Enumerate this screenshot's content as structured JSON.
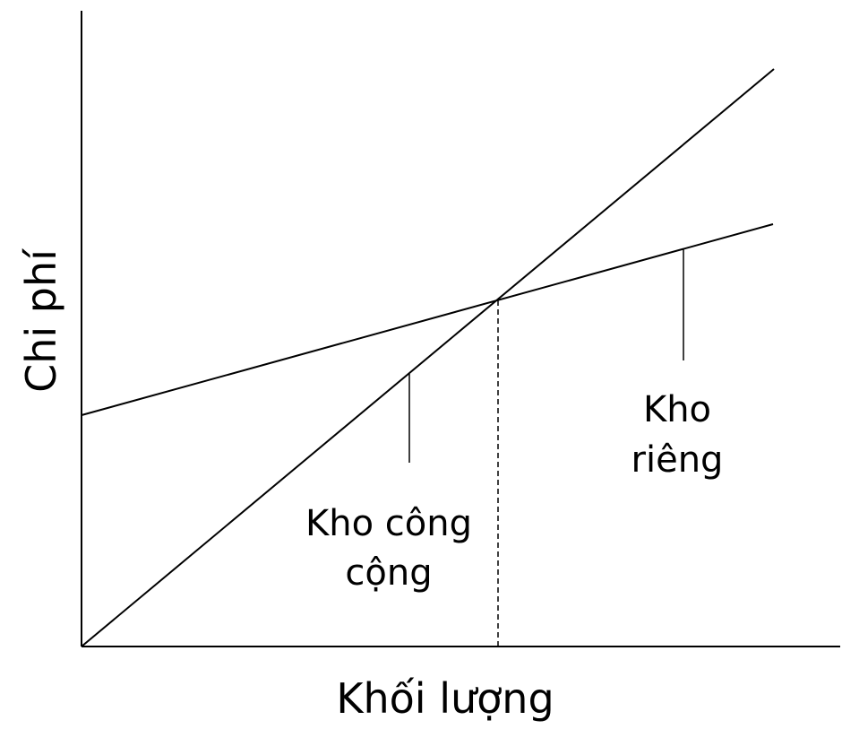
{
  "axes": {
    "y_label": "Chi phí",
    "x_label": "Khối lượng"
  },
  "lines": {
    "public_warehouse": {
      "label_line1": "Kho công",
      "label_line2": "cộng"
    },
    "private_warehouse": {
      "label_line1": "Kho",
      "label_line2": "riêng"
    }
  },
  "style": {
    "line_color": "#000000",
    "background": "#ffffff"
  }
}
